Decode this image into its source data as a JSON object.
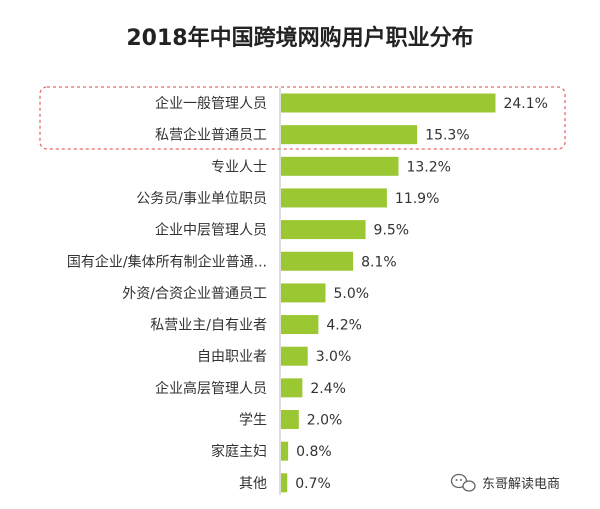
{
  "chart_data": {
    "type": "bar",
    "orientation": "horizontal",
    "title": "2018年中国跨境网购用户职业分布",
    "categories": [
      "企业一般管理人员",
      "私营企业普通员工",
      "专业人士",
      "公务员/事业单位职员",
      "企业中层管理人员",
      "国有企业/集体所有制企业普通...",
      "外资/合资企业普通员工",
      "私营业主/自有业者",
      "自由职业者",
      "企业高层管理人员",
      "学生",
      "家庭主妇",
      "其他"
    ],
    "values": [
      24.1,
      15.3,
      13.2,
      11.9,
      9.5,
      8.1,
      5.0,
      4.2,
      3.0,
      2.4,
      2.0,
      0.8,
      0.7
    ],
    "value_labels": [
      "24.1%",
      "15.3%",
      "13.2%",
      "11.9%",
      "9.5%",
      "8.1%",
      "5.0%",
      "4.2%",
      "3.0%",
      "2.4%",
      "2.0%",
      "0.8%",
      "0.7%"
    ],
    "unit": "%",
    "bar_color": "#9bc733",
    "highlight_box_color": "#e56a6a",
    "highlighted_categories": [
      "企业一般管理人员",
      "私营企业普通员工"
    ],
    "grid": false,
    "legend": "none"
  },
  "watermark": {
    "icon": "wechat-icon",
    "text": "东哥解读电商"
  }
}
